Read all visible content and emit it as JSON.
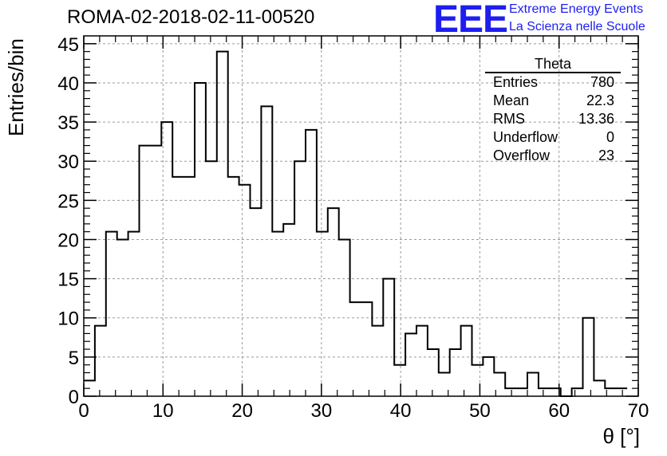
{
  "title": "ROMA-02-2018-02-11-00520",
  "logo": {
    "mark": "EEE",
    "line1": "Extreme Energy Events",
    "line2": "La Scienza nelle Scuole",
    "color": "#1e1ef0"
  },
  "stats": {
    "title": "Theta",
    "rows": [
      {
        "label": "Entries",
        "value": "780"
      },
      {
        "label": "Mean",
        "value": "22.3"
      },
      {
        "label": "RMS",
        "value": "13.36"
      },
      {
        "label": "Underflow",
        "value": "0"
      },
      {
        "label": "Overflow",
        "value": "23"
      }
    ]
  },
  "chart_data": {
    "type": "bar",
    "histogram": true,
    "title": "ROMA-02-2018-02-11-00520",
    "xlabel": "θ [°]",
    "ylabel": "Entries/bin",
    "xlim": [
      0,
      70
    ],
    "ylim": [
      0,
      46
    ],
    "bin_width": 1.4,
    "bin_edges_start": 0,
    "values": [
      2,
      9,
      21,
      20,
      21,
      32,
      32,
      35,
      28,
      28,
      40,
      30,
      44,
      28,
      27,
      24,
      37,
      21,
      22,
      30,
      34,
      21,
      24,
      20,
      12,
      12,
      9,
      15,
      4,
      8,
      9,
      6,
      3,
      6,
      9,
      4,
      5,
      3,
      1,
      1,
      3,
      1,
      1,
      0,
      1,
      10,
      2,
      1,
      1
    ],
    "x_ticks": [
      0,
      10,
      20,
      30,
      40,
      50,
      60,
      70
    ],
    "y_ticks": [
      0,
      5,
      10,
      15,
      20,
      25,
      30,
      35,
      40,
      45
    ],
    "grid": true,
    "line_color": "#000000"
  }
}
